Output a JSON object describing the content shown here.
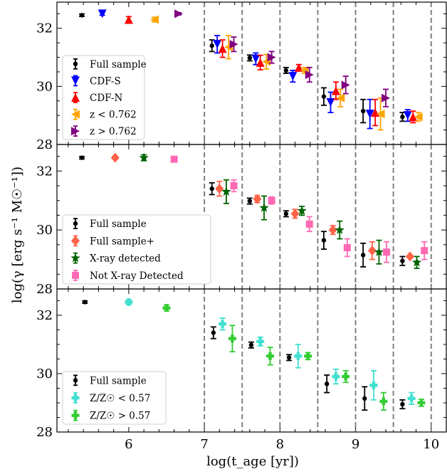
{
  "chart_data": {
    "type": "scatter",
    "xlabel": "log(t_age [yr])",
    "ylabel": "log(γ [erg s⁻¹ M☉⁻¹])",
    "xlim": [
      5.05,
      10.2
    ],
    "ylim": [
      28,
      32.9
    ],
    "xticks": [
      "6",
      "7",
      "8",
      "9",
      "10"
    ],
    "yticks": [
      "28",
      "30",
      "32"
    ],
    "vlines": [
      7.0,
      7.5,
      8.0,
      8.5,
      9.0,
      9.5,
      10.0
    ],
    "panels": [
      {
        "legend_position": "lower-left",
        "series": [
          {
            "name": "Full sample",
            "color": "#000000",
            "marker": "dot",
            "points": [
              {
                "x": 5.38,
                "y": 32.45,
                "lo": 0.04,
                "hi": 0.04
              },
              {
                "x": 7.1,
                "y": 31.4,
                "lo": 0.2,
                "hi": 0.2
              },
              {
                "x": 7.6,
                "y": 30.98,
                "lo": 0.1,
                "hi": 0.1
              },
              {
                "x": 8.08,
                "y": 30.55,
                "lo": 0.1,
                "hi": 0.1
              },
              {
                "x": 8.58,
                "y": 29.65,
                "lo": 0.3,
                "hi": 0.3
              },
              {
                "x": 9.1,
                "y": 29.15,
                "lo": 0.4,
                "hi": 0.4
              },
              {
                "x": 9.62,
                "y": 28.95,
                "lo": 0.15,
                "hi": 0.15
              }
            ]
          },
          {
            "name": "CDF-S",
            "color": "#0000ff",
            "marker": "triangle-down",
            "points": [
              {
                "x": 5.65,
                "y": 32.5,
                "lo": 0.05,
                "hi": 0.05
              },
              {
                "x": 7.17,
                "y": 31.45,
                "lo": 0.3,
                "hi": 0.3
              },
              {
                "x": 7.68,
                "y": 30.95,
                "lo": 0.2,
                "hi": 0.2
              },
              {
                "x": 8.17,
                "y": 30.35,
                "lo": 0.2,
                "hi": 0.2
              },
              {
                "x": 8.67,
                "y": 29.45,
                "lo": 0.35,
                "hi": 0.35
              },
              {
                "x": 9.19,
                "y": 29.05,
                "lo": 0.5,
                "hi": 0.5
              },
              {
                "x": 9.69,
                "y": 29.0,
                "lo": 0.2,
                "hi": 0.2
              }
            ]
          },
          {
            "name": "CDF-N",
            "color": "#ff0000",
            "marker": "triangle-up",
            "points": [
              {
                "x": 6.0,
                "y": 32.3,
                "lo": 0.1,
                "hi": 0.1
              },
              {
                "x": 7.24,
                "y": 31.3,
                "lo": 0.3,
                "hi": 0.3
              },
              {
                "x": 7.74,
                "y": 30.82,
                "lo": 0.25,
                "hi": 0.25
              },
              {
                "x": 8.25,
                "y": 30.65,
                "lo": 0.1,
                "hi": 0.1
              },
              {
                "x": 8.74,
                "y": 29.85,
                "lo": 0.3,
                "hi": 0.3
              },
              {
                "x": 9.26,
                "y": 29.1,
                "lo": 0.45,
                "hi": 0.45
              },
              {
                "x": 9.76,
                "y": 28.95,
                "lo": 0.2,
                "hi": 0.2
              }
            ]
          },
          {
            "name": "z < 0.762",
            "color": "#ffa500",
            "marker": "triangle-left",
            "points": [
              {
                "x": 6.34,
                "y": 32.3,
                "lo": 0.08,
                "hi": 0.08
              },
              {
                "x": 7.32,
                "y": 31.35,
                "lo": 0.4,
                "hi": 0.4
              },
              {
                "x": 7.82,
                "y": 30.85,
                "lo": 0.25,
                "hi": 0.25
              },
              {
                "x": 8.32,
                "y": 30.55,
                "lo": 0.1,
                "hi": 0.1
              },
              {
                "x": 8.8,
                "y": 29.6,
                "lo": 0.3,
                "hi": 0.3
              },
              {
                "x": 9.33,
                "y": 29.05,
                "lo": 0.55,
                "hi": 0.55
              },
              {
                "x": 9.83,
                "y": 28.95,
                "lo": 0.15,
                "hi": 0.15
              }
            ]
          },
          {
            "name": "z > 0.762",
            "color": "#800080",
            "marker": "triangle-right",
            "points": [
              {
                "x": 6.66,
                "y": 32.5,
                "lo": 0.04,
                "hi": 0.04
              },
              {
                "x": 7.39,
                "y": 31.45,
                "lo": 0.25,
                "hi": 0.25
              },
              {
                "x": 7.89,
                "y": 31.0,
                "lo": 0.2,
                "hi": 0.2
              },
              {
                "x": 8.39,
                "y": 30.4,
                "lo": 0.25,
                "hi": 0.25
              },
              {
                "x": 8.87,
                "y": 30.05,
                "lo": 0.3,
                "hi": 0.3
              },
              {
                "x": 9.4,
                "y": 29.6,
                "lo": 0.3,
                "hi": 0.3
              }
            ]
          }
        ]
      },
      {
        "legend_position": "lower-left",
        "series": [
          {
            "name": "Full sample",
            "color": "#000000",
            "marker": "dot",
            "points": [
              {
                "x": 5.38,
                "y": 32.45,
                "lo": 0.04,
                "hi": 0.04
              },
              {
                "x": 7.1,
                "y": 31.4,
                "lo": 0.2,
                "hi": 0.2
              },
              {
                "x": 7.6,
                "y": 30.98,
                "lo": 0.1,
                "hi": 0.1
              },
              {
                "x": 8.08,
                "y": 30.55,
                "lo": 0.1,
                "hi": 0.1
              },
              {
                "x": 8.58,
                "y": 29.65,
                "lo": 0.3,
                "hi": 0.3
              },
              {
                "x": 9.1,
                "y": 29.15,
                "lo": 0.4,
                "hi": 0.4
              },
              {
                "x": 9.62,
                "y": 28.95,
                "lo": 0.15,
                "hi": 0.15
              }
            ]
          },
          {
            "name": "Full sample+",
            "color": "#ff6347",
            "marker": "diamond",
            "points": [
              {
                "x": 5.82,
                "y": 32.45,
                "lo": 0.05,
                "hi": 0.05
              },
              {
                "x": 7.2,
                "y": 31.4,
                "lo": 0.25,
                "hi": 0.25
              },
              {
                "x": 7.7,
                "y": 31.05,
                "lo": 0.12,
                "hi": 0.12
              },
              {
                "x": 8.2,
                "y": 30.55,
                "lo": 0.15,
                "hi": 0.15
              },
              {
                "x": 8.7,
                "y": 30.0,
                "lo": 0.15,
                "hi": 0.15
              },
              {
                "x": 9.22,
                "y": 29.3,
                "lo": 0.3,
                "hi": 0.3
              },
              {
                "x": 9.72,
                "y": 29.1,
                "lo": 0.05,
                "hi": 0.05
              }
            ]
          },
          {
            "name": "X-ray detected",
            "color": "#006400",
            "marker": "star",
            "points": [
              {
                "x": 6.2,
                "y": 32.45,
                "lo": 0.1,
                "hi": 0.1
              },
              {
                "x": 7.29,
                "y": 31.3,
                "lo": 0.4,
                "hi": 0.4
              },
              {
                "x": 7.79,
                "y": 30.75,
                "lo": 0.4,
                "hi": 0.4
              },
              {
                "x": 8.29,
                "y": 30.65,
                "lo": 0.15,
                "hi": 0.15
              },
              {
                "x": 8.79,
                "y": 30.0,
                "lo": 0.3,
                "hi": 0.3
              },
              {
                "x": 9.31,
                "y": 29.25,
                "lo": 0.4,
                "hi": 0.4
              },
              {
                "x": 9.81,
                "y": 28.9,
                "lo": 0.2,
                "hi": 0.2
              }
            ]
          },
          {
            "name": "Not X-ray Detected",
            "color": "#ff69b4",
            "marker": "square",
            "points": [
              {
                "x": 6.6,
                "y": 32.4,
                "lo": 0.03,
                "hi": 0.03
              },
              {
                "x": 7.39,
                "y": 31.5,
                "lo": 0.2,
                "hi": 0.2
              },
              {
                "x": 7.89,
                "y": 31.0,
                "lo": 0.12,
                "hi": 0.12
              },
              {
                "x": 8.39,
                "y": 30.2,
                "lo": 0.25,
                "hi": 0.25
              },
              {
                "x": 8.89,
                "y": 29.4,
                "lo": 0.3,
                "hi": 0.3
              },
              {
                "x": 9.41,
                "y": 29.25,
                "lo": 0.35,
                "hi": 0.35
              },
              {
                "x": 9.91,
                "y": 29.3,
                "lo": 0.3,
                "hi": 0.3
              }
            ]
          }
        ]
      },
      {
        "legend_position": "lower-left",
        "series": [
          {
            "name": "Full sample",
            "color": "#000000",
            "marker": "dot",
            "points": [
              {
                "x": 5.42,
                "y": 32.45,
                "lo": 0.04,
                "hi": 0.04
              },
              {
                "x": 7.12,
                "y": 31.4,
                "lo": 0.2,
                "hi": 0.2
              },
              {
                "x": 7.62,
                "y": 30.98,
                "lo": 0.1,
                "hi": 0.1
              },
              {
                "x": 8.12,
                "y": 30.55,
                "lo": 0.1,
                "hi": 0.1
              },
              {
                "x": 8.62,
                "y": 29.65,
                "lo": 0.3,
                "hi": 0.3
              },
              {
                "x": 9.12,
                "y": 29.15,
                "lo": 0.4,
                "hi": 0.4
              },
              {
                "x": 9.62,
                "y": 28.95,
                "lo": 0.15,
                "hi": 0.15
              }
            ]
          },
          {
            "name": "Z/Z☉ < 0.57",
            "color": "#40e0d0",
            "marker": "plus",
            "points": [
              {
                "x": 6.0,
                "y": 32.45,
                "lo": 0.08,
                "hi": 0.08
              },
              {
                "x": 7.24,
                "y": 31.7,
                "lo": 0.2,
                "hi": 0.2
              },
              {
                "x": 7.74,
                "y": 31.1,
                "lo": 0.15,
                "hi": 0.15
              },
              {
                "x": 8.24,
                "y": 30.6,
                "lo": 0.4,
                "hi": 0.4
              },
              {
                "x": 8.74,
                "y": 29.9,
                "lo": 0.25,
                "hi": 0.25
              },
              {
                "x": 9.24,
                "y": 29.6,
                "lo": 0.5,
                "hi": 0.5
              },
              {
                "x": 9.74,
                "y": 29.15,
                "lo": 0.2,
                "hi": 0.2
              }
            ]
          },
          {
            "name": "Z/Z☉ > 0.57",
            "color": "#32cd32",
            "marker": "plus-filled",
            "points": [
              {
                "x": 6.5,
                "y": 32.25,
                "lo": 0.1,
                "hi": 0.1
              },
              {
                "x": 7.37,
                "y": 31.2,
                "lo": 0.45,
                "hi": 0.45
              },
              {
                "x": 7.87,
                "y": 30.6,
                "lo": 0.3,
                "hi": 0.3
              },
              {
                "x": 8.37,
                "y": 30.6,
                "lo": 0.12,
                "hi": 0.12
              },
              {
                "x": 8.87,
                "y": 29.9,
                "lo": 0.2,
                "hi": 0.2
              },
              {
                "x": 9.37,
                "y": 29.05,
                "lo": 0.3,
                "hi": 0.3
              },
              {
                "x": 9.87,
                "y": 29.0,
                "lo": 0.12,
                "hi": 0.12
              }
            ]
          }
        ]
      }
    ]
  }
}
